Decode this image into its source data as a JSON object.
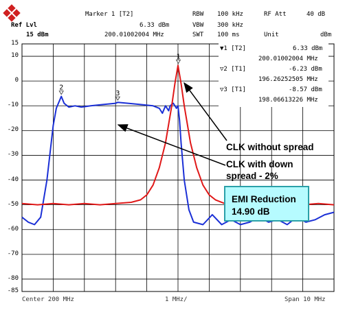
{
  "header": {
    "ref_lvl_label": "Ref Lvl",
    "ref_lvl_value": "15 dBm",
    "marker_title": "Marker 1 [T2]",
    "marker_level": "6.33 dBm",
    "marker_freq": "200.01002004 MHz",
    "rbw_label": "RBW",
    "rbw_value": "100 kHz",
    "vbw_label": "VBW",
    "vbw_value": "300 kHz",
    "swt_label": "SWT",
    "swt_value": "100 ms",
    "rf_att_label": "RF Att",
    "rf_att_value": "40 dB",
    "unit_label": "Unit",
    "unit_value": "dBm"
  },
  "markers_table": [
    {
      "id": "▼1 [T2]",
      "level": "6.33 dBm",
      "freq": "200.01002004 MHz"
    },
    {
      "id": "▽2 [T1]",
      "level": "-6.23 dBm",
      "freq": "196.26252505 MHz"
    },
    {
      "id": "▽3 [T1]",
      "level": "-8.57 dBm",
      "freq": "198.06613226 MHz"
    }
  ],
  "marker_labels": [
    "1",
    "2",
    "3"
  ],
  "footer": {
    "center": "Center 200 MHz",
    "div": "1 MHz/",
    "span": "Span 10 MHz"
  },
  "annotations": {
    "clk_without": "CLK without spread",
    "clk_with_line1": "CLK with down",
    "clk_with_line2": "spread - 2%",
    "emi_line1": "EMI Reduction",
    "emi_line2": "14.90 dB"
  },
  "colors": {
    "blue_trace": "#1a2fd6",
    "red_trace": "#e01818",
    "grid": "#000000",
    "emi_box_bg": "#b6fbff"
  },
  "chart_data": {
    "type": "line",
    "title": "",
    "xlabel": "",
    "ylabel": "",
    "x_unit": "MHz",
    "xlim": [
      195,
      205
    ],
    "ylim": [
      -85,
      15
    ],
    "y_ticks": [
      15,
      10,
      0,
      -10,
      -20,
      -30,
      -40,
      -50,
      -60,
      -70,
      -80,
      -85
    ],
    "grid": true,
    "series": [
      {
        "name": "CLK with down spread - 2%",
        "color": "#1a2fd6",
        "x": [
          195.0,
          195.2,
          195.4,
          195.6,
          195.8,
          196.0,
          196.1,
          196.2,
          196.26,
          196.35,
          196.5,
          196.7,
          196.9,
          197.2,
          197.6,
          198.0,
          198.07,
          198.4,
          198.8,
          199.2,
          199.4,
          199.5,
          199.6,
          199.7,
          199.75,
          199.85,
          199.95,
          200.0,
          200.05,
          200.1,
          200.2,
          200.35,
          200.5,
          200.8,
          201.1,
          201.4,
          201.7,
          202.0,
          202.3,
          202.6,
          202.9,
          203.2,
          203.5,
          203.8,
          204.1,
          204.4,
          204.7,
          205.0
        ],
        "y": [
          -55,
          -57,
          -58,
          -55,
          -40,
          -18,
          -11,
          -8,
          -6.2,
          -9,
          -10.5,
          -10,
          -10.5,
          -10,
          -9.5,
          -9,
          -8.6,
          -9,
          -9.5,
          -10,
          -11,
          -13,
          -10,
          -12,
          -10,
          -9,
          -11,
          -10,
          -16,
          -25,
          -40,
          -52,
          -57,
          -58,
          -54,
          -58,
          -56,
          -58,
          -57,
          -55,
          -57,
          -56,
          -58,
          -55,
          -57,
          -56,
          -54,
          -53
        ]
      },
      {
        "name": "CLK without spread",
        "color": "#e01818",
        "x": [
          195.0,
          195.5,
          196.0,
          196.5,
          197.0,
          197.5,
          198.0,
          198.5,
          198.8,
          199.0,
          199.2,
          199.4,
          199.6,
          199.8,
          199.9,
          200.0,
          200.1,
          200.2,
          200.4,
          200.6,
          200.8,
          201.0,
          201.2,
          201.5,
          202.0,
          202.5,
          203.0,
          203.5,
          204.0,
          204.5,
          205.0
        ],
        "y": [
          -49.5,
          -50,
          -49.5,
          -50,
          -49.5,
          -50,
          -49.5,
          -49,
          -48,
          -46,
          -42,
          -35,
          -25,
          -10,
          -1,
          6.3,
          -1,
          -10,
          -25,
          -35,
          -42,
          -46,
          -48,
          -49.5,
          -50,
          -49.5,
          -50,
          -49.5,
          -50,
          -49.5,
          -50
        ]
      }
    ],
    "markers": [
      {
        "label": "1",
        "x": 200.01,
        "y": 6.33
      },
      {
        "label": "2",
        "x": 196.26,
        "y": -6.23
      },
      {
        "label": "3",
        "x": 198.07,
        "y": -8.57
      }
    ]
  }
}
